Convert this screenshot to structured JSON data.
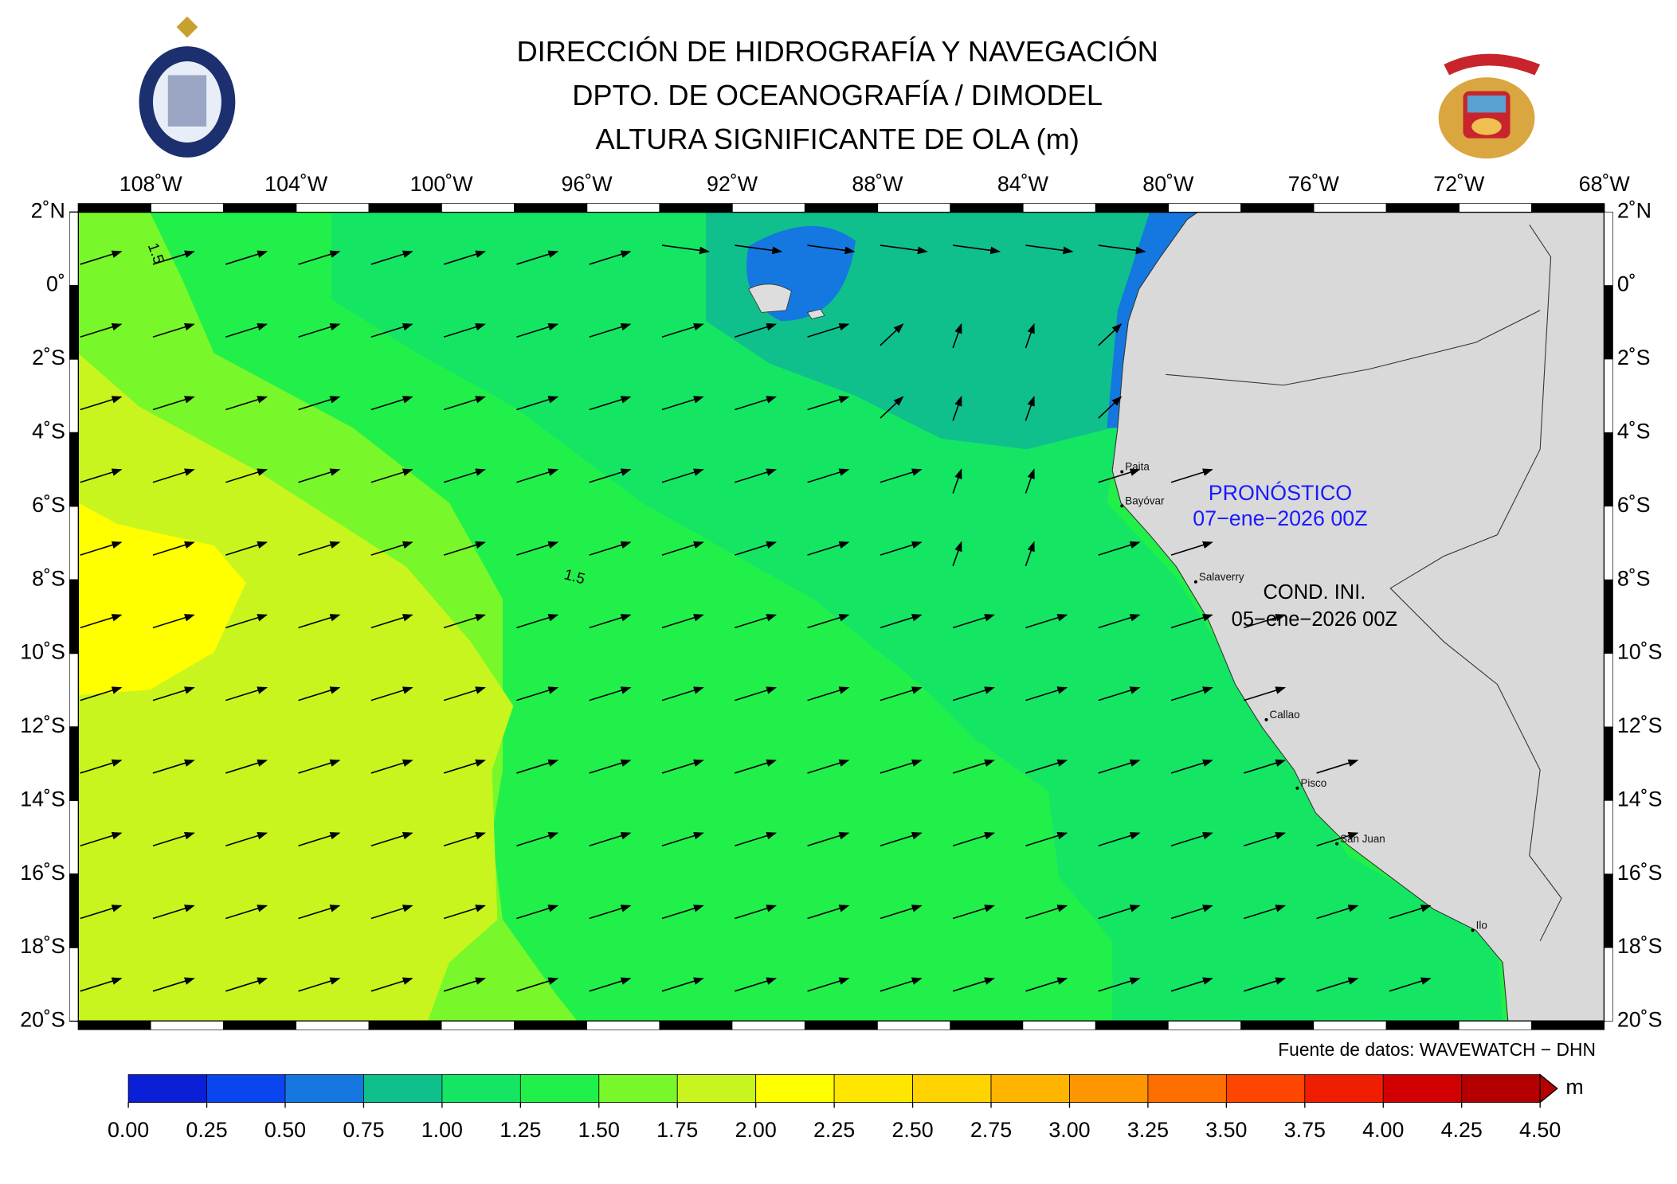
{
  "header": {
    "title_lines": [
      "DIRECCIÓN DE HIDROGRAFÍA Y NAVEGACIÓN",
      "DPTO. DE OCEANOGRAFÍA / DIMODEL",
      "ALTURA SIGNIFICANTE DE OLA (m)"
    ]
  },
  "map": {
    "xlim": [
      -110,
      -68
    ],
    "ylim": [
      -20,
      2
    ],
    "xticks": [
      {
        "value": -108,
        "label": "108˚W"
      },
      {
        "value": -104,
        "label": "104˚W"
      },
      {
        "value": -100,
        "label": "100˚W"
      },
      {
        "value": -96,
        "label": "96˚W"
      },
      {
        "value": -92,
        "label": "92˚W"
      },
      {
        "value": -88,
        "label": "88˚W"
      },
      {
        "value": -84,
        "label": "84˚W"
      },
      {
        "value": -80,
        "label": "80˚W"
      },
      {
        "value": -76,
        "label": "76˚W"
      },
      {
        "value": -72,
        "label": "72˚W"
      },
      {
        "value": -68,
        "label": "68˚W"
      }
    ],
    "yticks": [
      {
        "value": 2,
        "label": "2˚N"
      },
      {
        "value": 0,
        "label": "0˚"
      },
      {
        "value": -2,
        "label": "2˚S"
      },
      {
        "value": -4,
        "label": "4˚S"
      },
      {
        "value": -6,
        "label": "6˚S"
      },
      {
        "value": -8,
        "label": "8˚S"
      },
      {
        "value": -10,
        "label": "10˚S"
      },
      {
        "value": -12,
        "label": "12˚S"
      },
      {
        "value": -14,
        "label": "14˚S"
      },
      {
        "value": -16,
        "label": "16˚S"
      },
      {
        "value": -18,
        "label": "18˚S"
      },
      {
        "value": -20,
        "label": "20˚S"
      }
    ],
    "cities": [
      "Paita",
      "Bayóvar",
      "Salaverry",
      "Callao",
      "Pisco",
      "San Juan",
      "Ilo"
    ],
    "contour_labels": [
      "1.5",
      "1.5"
    ],
    "forecast": {
      "label": "PRONÓSTICO",
      "date": "07−ene−2026 00Z"
    },
    "initial": {
      "label": "COND. INI.",
      "date": "05−ene−2026 00Z"
    }
  },
  "source": "Fuente de datos: WAVEWATCH − DHN",
  "colorbar": {
    "unit": "m",
    "ticks": [
      {
        "value": 0,
        "label": "0.00"
      },
      {
        "value": 0.25,
        "label": "0.25"
      },
      {
        "value": 0.5,
        "label": "0.50"
      },
      {
        "value": 0.75,
        "label": "0.75"
      },
      {
        "value": 1,
        "label": "1.00"
      },
      {
        "value": 1.25,
        "label": "1.25"
      },
      {
        "value": 1.5,
        "label": "1.50"
      },
      {
        "value": 1.75,
        "label": "1.75"
      },
      {
        "value": 2,
        "label": "2.00"
      },
      {
        "value": 2.25,
        "label": "2.25"
      },
      {
        "value": 2.5,
        "label": "2.50"
      },
      {
        "value": 2.75,
        "label": "2.75"
      },
      {
        "value": 3,
        "label": "3.00"
      },
      {
        "value": 3.25,
        "label": "3.25"
      },
      {
        "value": 3.5,
        "label": "3.50"
      },
      {
        "value": 3.75,
        "label": "3.75"
      },
      {
        "value": 4,
        "label": "4.00"
      },
      {
        "value": 4.25,
        "label": "4.25"
      },
      {
        "value": 4.5,
        "label": "4.50"
      }
    ],
    "colors": [
      "#0a1fd6",
      "#0a46f0",
      "#1478e0",
      "#0fc08c",
      "#14e664",
      "#22f04a",
      "#78f82a",
      "#c8f51e",
      "#ffff00",
      "#ffe600",
      "#ffd200",
      "#ffb400",
      "#ff9600",
      "#ff6e00",
      "#ff4600",
      "#f01e00",
      "#d20000",
      "#b40000"
    ]
  }
}
